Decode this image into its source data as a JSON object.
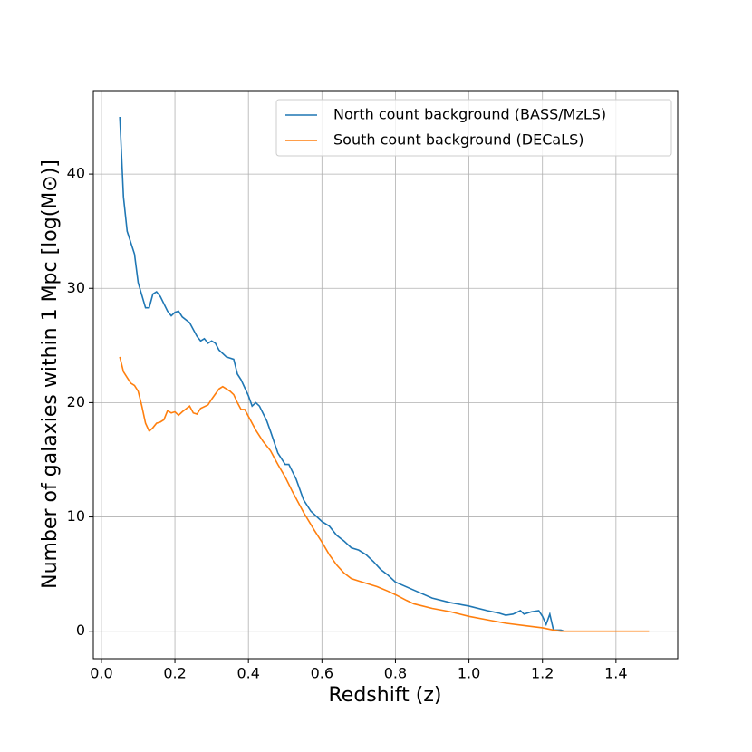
{
  "chart_data": {
    "type": "line",
    "xlabel": "Redshift (z)",
    "ylabel": "Number of galaxies within 1 Mpc [log(M⊙)]",
    "xlim": [
      -0.022,
      1.568
    ],
    "ylim": [
      -2.4,
      47.3
    ],
    "xticks": [
      {
        "value": 0,
        "label": "0.0"
      },
      0.2,
      0.4,
      0.6,
      0.8,
      {
        "value": 1,
        "label": "1.0"
      },
      1.2,
      1.4
    ],
    "yticks": [
      0,
      10,
      20,
      30,
      40
    ],
    "grid": true,
    "legend": "upper right",
    "series": [
      {
        "name": "North count background (BASS/MzLS)",
        "color": "#1f77b4",
        "x": [
          0.05,
          0.06,
          0.07,
          0.09,
          0.1,
          0.12,
          0.13,
          0.14,
          0.15,
          0.16,
          0.18,
          0.19,
          0.2,
          0.21,
          0.22,
          0.24,
          0.26,
          0.27,
          0.28,
          0.29,
          0.3,
          0.31,
          0.32,
          0.34,
          0.36,
          0.37,
          0.38,
          0.4,
          0.41,
          0.42,
          0.43,
          0.45,
          0.46,
          0.48,
          0.5,
          0.51,
          0.53,
          0.55,
          0.57,
          0.6,
          0.62,
          0.64,
          0.66,
          0.68,
          0.7,
          0.72,
          0.74,
          0.76,
          0.78,
          0.8,
          0.85,
          0.9,
          0.95,
          1.0,
          1.05,
          1.08,
          1.1,
          1.12,
          1.14,
          1.15,
          1.17,
          1.19,
          1.2,
          1.21,
          1.22,
          1.23,
          1.25,
          1.26
        ],
        "values": [
          45,
          38,
          35,
          33,
          30.5,
          28.3,
          28.3,
          29.5,
          29.7,
          29.3,
          28,
          27.6,
          27.9,
          28,
          27.5,
          27,
          25.8,
          25.4,
          25.6,
          25.2,
          25.4,
          25.2,
          24.6,
          24,
          23.8,
          22.5,
          22,
          20.6,
          19.7,
          20,
          19.7,
          18.4,
          17.5,
          15.6,
          14.6,
          14.6,
          13.3,
          11.5,
          10.5,
          9.6,
          9.2,
          8.4,
          7.9,
          7.3,
          7.1,
          6.7,
          6.1,
          5.4,
          4.9,
          4.3,
          3.6,
          2.9,
          2.5,
          2.2,
          1.8,
          1.6,
          1.4,
          1.5,
          1.8,
          1.5,
          1.7,
          1.8,
          1.3,
          0.6,
          1.5,
          0.1,
          0.1,
          0
        ]
      },
      {
        "name": "South count background (DECaLS)",
        "color": "#ff7f0e",
        "x": [
          0.05,
          0.06,
          0.07,
          0.08,
          0.09,
          0.1,
          0.11,
          0.12,
          0.13,
          0.14,
          0.15,
          0.16,
          0.17,
          0.18,
          0.19,
          0.2,
          0.21,
          0.22,
          0.24,
          0.25,
          0.26,
          0.27,
          0.29,
          0.3,
          0.32,
          0.33,
          0.35,
          0.36,
          0.37,
          0.38,
          0.39,
          0.4,
          0.42,
          0.44,
          0.46,
          0.48,
          0.5,
          0.52,
          0.55,
          0.58,
          0.6,
          0.62,
          0.64,
          0.66,
          0.68,
          0.7,
          0.72,
          0.75,
          0.78,
          0.8,
          0.83,
          0.85,
          0.9,
          0.95,
          1.0,
          1.05,
          1.1,
          1.15,
          1.2,
          1.23,
          1.25,
          1.49
        ],
        "values": [
          24,
          22.7,
          22.2,
          21.7,
          21.5,
          21,
          19.7,
          18.2,
          17.5,
          17.8,
          18.2,
          18.3,
          18.5,
          19.3,
          19.1,
          19.2,
          18.9,
          19.2,
          19.7,
          19.1,
          19,
          19.5,
          19.8,
          20.3,
          21.2,
          21.4,
          21,
          20.7,
          20,
          19.4,
          19.4,
          18.8,
          17.6,
          16.6,
          15.8,
          14.6,
          13.5,
          12.2,
          10.4,
          8.8,
          7.8,
          6.7,
          5.8,
          5.1,
          4.6,
          4.4,
          4.2,
          3.9,
          3.5,
          3.2,
          2.7,
          2.4,
          2,
          1.7,
          1.3,
          1,
          0.7,
          0.5,
          0.3,
          0.1,
          0,
          0
        ]
      }
    ]
  }
}
